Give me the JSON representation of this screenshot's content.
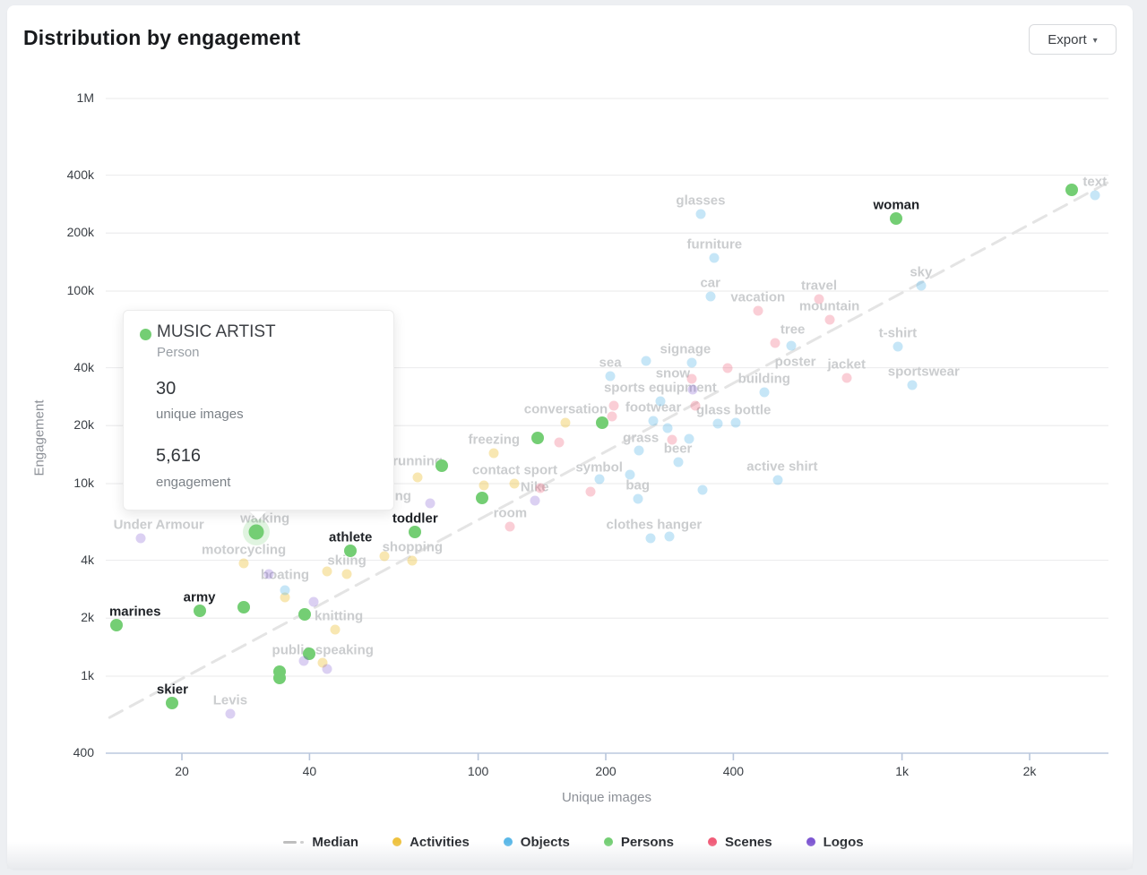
{
  "header": {
    "title": "Distribution by engagement",
    "export_label": "Export",
    "export_caret": "▾"
  },
  "tooltip": {
    "title": "MUSIC ARTIST",
    "subtitle": "Person",
    "value1": "30",
    "value1_label": "unique images",
    "value2": "5,616",
    "value2_label": "engagement"
  },
  "chart_data": {
    "type": "scatter",
    "title": "Distribution by engagement",
    "xlabel": "Unique images",
    "ylabel": "Engagement",
    "x_scale": "log",
    "y_scale": "log",
    "xlim": [
      12,
      3200
    ],
    "ylim": [
      400,
      1000000
    ],
    "grid": true,
    "legend_position": "bottom",
    "x_ticks": [
      {
        "v": 20,
        "label": "20"
      },
      {
        "v": 40,
        "label": "40"
      },
      {
        "v": 100,
        "label": "100"
      },
      {
        "v": 200,
        "label": "200"
      },
      {
        "v": 400,
        "label": "400"
      },
      {
        "v": 1000,
        "label": "1k"
      },
      {
        "v": 2000,
        "label": "2k"
      }
    ],
    "y_ticks": [
      {
        "v": 1000000,
        "label": "1M"
      },
      {
        "v": 400000,
        "label": "400k"
      },
      {
        "v": 200000,
        "label": "200k"
      },
      {
        "v": 100000,
        "label": "100k"
      },
      {
        "v": 40000,
        "label": "40k"
      },
      {
        "v": 20000,
        "label": "20k"
      },
      {
        "v": 10000,
        "label": "10k"
      },
      {
        "v": 4000,
        "label": "4k"
      },
      {
        "v": 2000,
        "label": "2k"
      },
      {
        "v": 1000,
        "label": "1k"
      },
      {
        "v": 400,
        "label": "400"
      }
    ],
    "median_line": {
      "label": "Median",
      "x1": 13.5,
      "y1": 610,
      "x2": 3050,
      "y2": 365000,
      "color": "#e4e4e4"
    },
    "highlight": {
      "label": "MUSIC ARTIST",
      "category": "Persons",
      "unique_images": 30,
      "engagement": 5616
    },
    "legend": [
      {
        "label": "Median",
        "type": "dash",
        "color": "#bdbdbd"
      },
      {
        "label": "Activities",
        "type": "dot",
        "color": "#eec23f"
      },
      {
        "label": "Objects",
        "type": "dot",
        "color": "#5bb8e8"
      },
      {
        "label": "Persons",
        "type": "dot",
        "color": "#74ce74"
      },
      {
        "label": "Scenes",
        "type": "dot",
        "color": "#f05c78"
      },
      {
        "label": "Logos",
        "type": "dot",
        "color": "#7e57d2"
      }
    ],
    "series": [
      {
        "name": "Activities",
        "color": "#eec23f",
        "dot_color": "rgba(238,194,63,0.40)",
        "points": [
          {
            "x": 161,
            "y": 20700,
            "label": "conversation"
          },
          {
            "x": 109,
            "y": 14400,
            "label": "freezing"
          },
          {
            "x": 72,
            "y": 10800,
            "label": "running",
            "dy": -3
          },
          {
            "x": 103,
            "y": 9800
          },
          {
            "x": 122,
            "y": 10000,
            "label": "contact sport"
          },
          {
            "x": 60,
            "y": 4200
          },
          {
            "x": 70,
            "y": 4000,
            "label": "shopping"
          },
          {
            "x": 44,
            "y": 3500
          },
          {
            "x": 49,
            "y": 3400,
            "label": "skiing"
          },
          {
            "x": 28,
            "y": 3860,
            "label": "motorcycling"
          },
          {
            "x": 35,
            "y": 2560,
            "label": "boating",
            "dy": -10
          },
          {
            "x": 46,
            "y": 1750,
            "label": "knitting",
            "dx": 4
          },
          {
            "x": 43,
            "y": 1170,
            "label": "public speaking",
            "dy": 1
          },
          {
            "x": 31.4,
            "y": 5610,
            "label": "walking",
            "label_only": true
          },
          {
            "x": 66.5,
            "y": 7330,
            "label": "ng",
            "label_only": true
          }
        ]
      },
      {
        "name": "Objects",
        "color": "#5bb8e8",
        "dot_color": "rgba(91,184,232,0.35)",
        "points": [
          {
            "x": 2850,
            "y": 315000,
            "label": "text"
          },
          {
            "x": 335,
            "y": 251000,
            "label": "glasses"
          },
          {
            "x": 361,
            "y": 149000,
            "label": "furniture"
          },
          {
            "x": 1109,
            "y": 107000,
            "label": "sky"
          },
          {
            "x": 353,
            "y": 94000,
            "label": "car"
          },
          {
            "x": 977,
            "y": 51500,
            "label": "t-shirt"
          },
          {
            "x": 548,
            "y": 52000
          },
          {
            "x": 319,
            "y": 42500,
            "label": "signage",
            "dx": -7
          },
          {
            "x": 249,
            "y": 43400
          },
          {
            "x": 205,
            "y": 36200,
            "label": "sea"
          },
          {
            "x": 1056,
            "y": 32500,
            "label": "sportswear",
            "dx": 13
          },
          {
            "x": 473,
            "y": 29800,
            "label": "building"
          },
          {
            "x": 269,
            "y": 26800,
            "label": "sports equipment"
          },
          {
            "x": 259,
            "y": 21200,
            "label": "footwear"
          },
          {
            "x": 280,
            "y": 19400
          },
          {
            "x": 367,
            "y": 20500,
            "label": "glass bottle",
            "dx": 18
          },
          {
            "x": 406,
            "y": 20700
          },
          {
            "x": 315,
            "y": 17100
          },
          {
            "x": 296,
            "y": 12900,
            "label": "beer"
          },
          {
            "x": 240,
            "y": 14900
          },
          {
            "x": 193,
            "y": 10500,
            "label": "symbol",
            "dy": 2
          },
          {
            "x": 228,
            "y": 11100
          },
          {
            "x": 238,
            "y": 8300,
            "label": "bag"
          },
          {
            "x": 509,
            "y": 10400,
            "label": "active shirt",
            "dx": 5
          },
          {
            "x": 338,
            "y": 9300
          },
          {
            "x": 255,
            "y": 5200,
            "label": "clothes hanger",
            "dx": 4
          },
          {
            "x": 283,
            "y": 5300
          },
          {
            "x": 35,
            "y": 2800
          }
        ]
      },
      {
        "name": "Persons",
        "color": "#74ce74",
        "dot_color": "#74ce74",
        "points": [
          {
            "x": 30,
            "y": 5616,
            "highlight": true
          },
          {
            "x": 970,
            "y": 238000,
            "label": "woman",
            "bold": true
          },
          {
            "x": 2520,
            "y": 336000
          },
          {
            "x": 196,
            "y": 20700
          },
          {
            "x": 138,
            "y": 17300
          },
          {
            "x": 82,
            "y": 12400
          },
          {
            "x": 102,
            "y": 8400
          },
          {
            "x": 71,
            "y": 5600,
            "label": "toddler",
            "bold": true
          },
          {
            "x": 50,
            "y": 4500,
            "label": "athlete",
            "bold": true
          },
          {
            "x": 22,
            "y": 2190,
            "label": "army",
            "bold": true
          },
          {
            "x": 28,
            "y": 2280
          },
          {
            "x": 14,
            "y": 1840,
            "label": "marines",
            "bold": true,
            "dx": 21
          },
          {
            "x": 39,
            "y": 2090
          },
          {
            "x": 40,
            "y": 1310
          },
          {
            "x": 34,
            "y": 1050
          },
          {
            "x": 34,
            "y": 980
          },
          {
            "x": 19,
            "y": 724,
            "label": "skier",
            "bold": true
          }
        ]
      },
      {
        "name": "Scenes",
        "color": "#f05c78",
        "dot_color": "rgba(240,92,120,0.30)",
        "points": [
          {
            "x": 637,
            "y": 91000,
            "label": "travel"
          },
          {
            "x": 457,
            "y": 79000,
            "label": "vacation"
          },
          {
            "x": 674,
            "y": 71000,
            "label": "mountain"
          },
          {
            "x": 501,
            "y": 54000,
            "label": "tree",
            "dx": 20
          },
          {
            "x": 387,
            "y": 39800,
            "label": "poster",
            "dx": 76,
            "dy": 8
          },
          {
            "x": 740,
            "y": 35400,
            "label": "jacket"
          },
          {
            "x": 319,
            "y": 35000,
            "label": "snow",
            "dx": -21,
            "dy": 9
          },
          {
            "x": 325,
            "y": 25400
          },
          {
            "x": 209,
            "y": 25400
          },
          {
            "x": 207,
            "y": 22300
          },
          {
            "x": 155,
            "y": 16400
          },
          {
            "x": 287,
            "y": 16900,
            "label": "grass",
            "dx": -35,
            "dy": 13
          },
          {
            "x": 119,
            "y": 6000,
            "label": "room"
          },
          {
            "x": 184,
            "y": 9100
          },
          {
            "x": 140,
            "y": 9500
          }
        ]
      },
      {
        "name": "Logos",
        "color": "#7e57d2",
        "dot_color": "rgba(126,87,210,0.28)",
        "points": [
          {
            "x": 16,
            "y": 5200,
            "label": "Under Armour",
            "dx": 20
          },
          {
            "x": 136,
            "y": 8200,
            "label": "Nike"
          },
          {
            "x": 26,
            "y": 638,
            "label": "Levis"
          },
          {
            "x": 77,
            "y": 7900
          },
          {
            "x": 32,
            "y": 3400
          },
          {
            "x": 41,
            "y": 2430
          },
          {
            "x": 38.7,
            "y": 1200
          },
          {
            "x": 44,
            "y": 1090
          },
          {
            "x": 321,
            "y": 30800
          }
        ]
      }
    ]
  }
}
